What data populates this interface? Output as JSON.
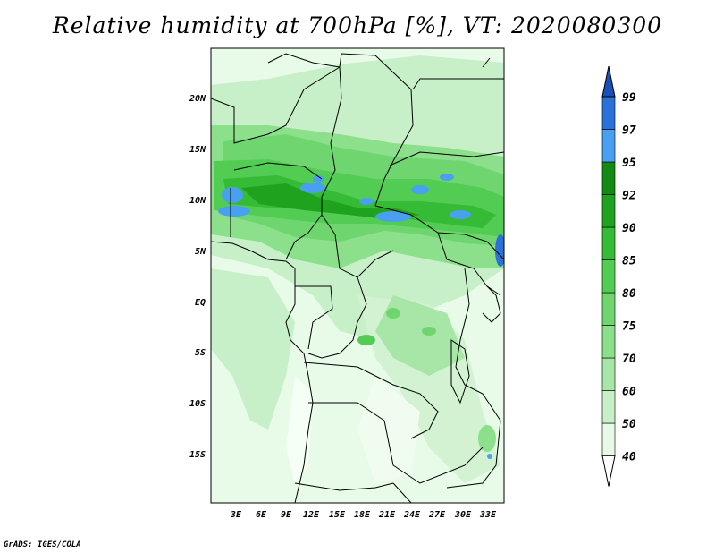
{
  "title": "Relative humidity at 700hPa [%], VT: 2020080300",
  "credit": "GrADS: IGES/COLA",
  "colorbar": {
    "levels": [
      "40",
      "50",
      "60",
      "70",
      "75",
      "80",
      "85",
      "90",
      "92",
      "95",
      "97",
      "99"
    ],
    "colors": [
      "#ffffff",
      "#e6fae6",
      "#c8f0c8",
      "#a8e6a8",
      "#8ce08c",
      "#6fd66f",
      "#52cc52",
      "#35bb35",
      "#1fa31f",
      "#138a13",
      "#4aa0f0",
      "#2a72d8",
      "#1850b8"
    ]
  },
  "map": {
    "lat_labels": [
      "20N",
      "15N",
      "10N",
      "5N",
      "EQ",
      "5S",
      "10S",
      "15S"
    ],
    "lon_labels": [
      "3E",
      "6E",
      "9E",
      "12E",
      "15E",
      "18E",
      "21E",
      "24E",
      "27E",
      "30E",
      "33E"
    ]
  }
}
